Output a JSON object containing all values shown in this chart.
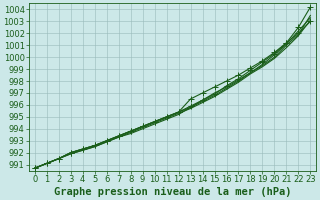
{
  "xlabel": "Graphe pression niveau de la mer (hPa)",
  "x": [
    0,
    1,
    2,
    3,
    4,
    5,
    6,
    7,
    8,
    9,
    10,
    11,
    12,
    13,
    14,
    15,
    16,
    17,
    18,
    19,
    20,
    21,
    22,
    23
  ],
  "ylim": [
    990.5,
    1004.5
  ],
  "xlim": [
    -0.5,
    23.5
  ],
  "yticks": [
    991,
    992,
    993,
    994,
    995,
    996,
    997,
    998,
    999,
    1000,
    1001,
    1002,
    1003,
    1004
  ],
  "lines": [
    [
      990.7,
      991.1,
      991.5,
      992.0,
      992.3,
      992.6,
      993.0,
      993.4,
      993.8,
      994.2,
      994.6,
      995.0,
      995.4,
      995.8,
      996.3,
      996.8,
      997.4,
      998.0,
      998.7,
      999.4,
      1000.2,
      1001.1,
      1002.2,
      1003.3
    ],
    [
      990.7,
      991.1,
      991.5,
      992.0,
      992.3,
      992.6,
      993.0,
      993.4,
      993.8,
      994.2,
      994.6,
      995.0,
      995.4,
      995.9,
      996.4,
      996.9,
      997.6,
      998.2,
      998.9,
      999.6,
      1000.3,
      1001.2,
      1002.5,
      1004.2
    ],
    [
      990.7,
      991.1,
      991.5,
      991.9,
      992.2,
      992.5,
      992.9,
      993.3,
      993.6,
      994.0,
      994.4,
      994.8,
      995.2,
      995.8,
      996.4,
      997.0,
      997.5,
      998.1,
      998.7,
      999.3,
      1000.0,
      1001.0,
      1001.9,
      1003.5
    ],
    [
      990.7,
      991.1,
      991.5,
      991.9,
      992.2,
      992.5,
      992.9,
      993.3,
      993.7,
      994.1,
      994.5,
      994.9,
      995.3,
      995.7,
      996.2,
      996.7,
      997.3,
      997.9,
      998.6,
      999.2,
      999.9,
      1000.8,
      1001.8,
      1003.1
    ],
    [
      990.7,
      991.1,
      991.5,
      992.0,
      992.3,
      992.6,
      993.0,
      993.4,
      993.8,
      994.2,
      994.6,
      995.0,
      995.4,
      996.5,
      997.0,
      997.5,
      998.0,
      998.5,
      999.1,
      999.7,
      1000.4,
      1001.2,
      1002.0,
      1003.0
    ]
  ],
  "marker_line_indices": [
    1,
    4
  ],
  "bg_color": "#cce8e8",
  "grid_color": "#99bbbb",
  "line_color": "#1a5e1a",
  "label_color": "#1a5e1a",
  "axis_color": "#1a5e1a",
  "marker": "+",
  "markersize": 4,
  "linewidth": 0.8,
  "xlabel_fontsize": 7.5,
  "tick_fontsize": 6.0
}
